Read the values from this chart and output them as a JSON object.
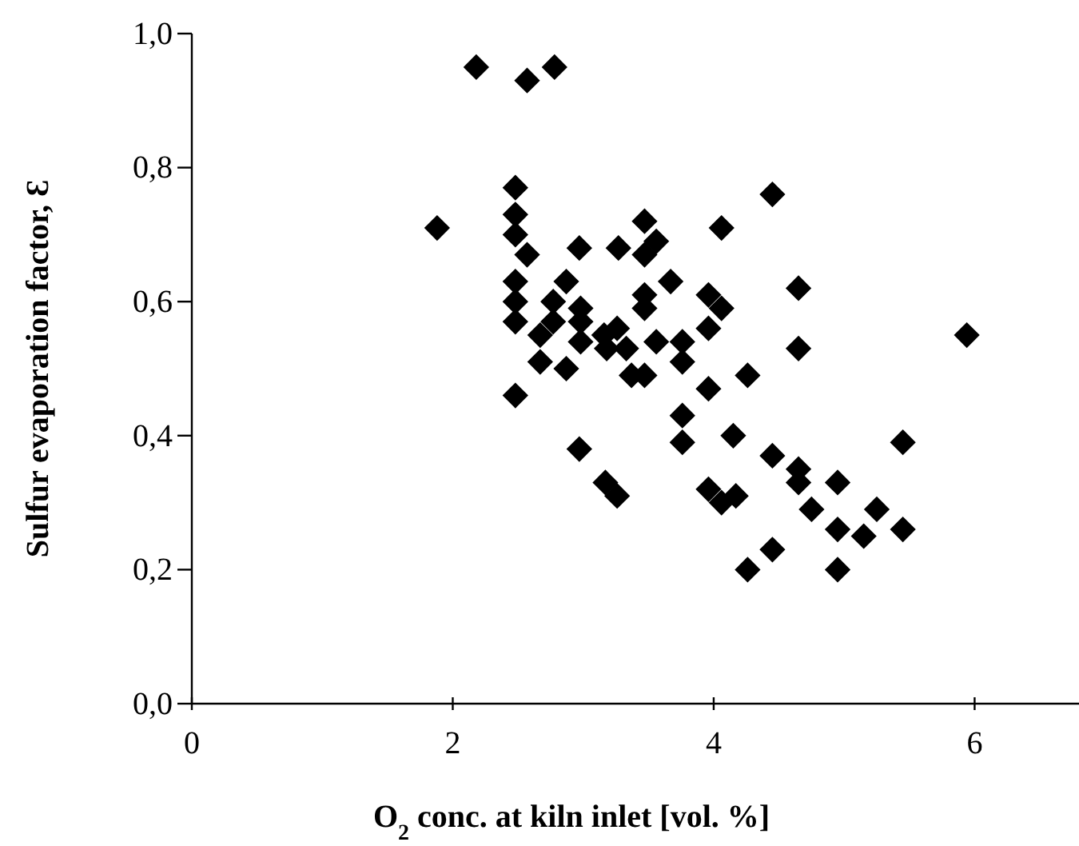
{
  "chart_data": {
    "type": "scatter",
    "xlabel": "O$_{2}$ conc. at kiln inlet [vol. %]",
    "ylabel": "Sulfur evaporation factor, Ɛ",
    "xlim": [
      0,
      6.8
    ],
    "ylim": [
      0,
      1
    ],
    "xticks": [
      0,
      2,
      4,
      6
    ],
    "yticks": [
      {
        "value": 0,
        "label": "0,0"
      },
      {
        "value": 0.2,
        "label": "0,2"
      },
      {
        "value": 0.4,
        "label": "0,4"
      },
      {
        "value": 0.6,
        "label": "0,6"
      },
      {
        "value": 0.8,
        "label": "0,8"
      },
      {
        "value": 1,
        "label": "1,0"
      }
    ],
    "marker": "diamond",
    "grid": false,
    "series": [
      {
        "color": "#000000",
        "x": [
          2.18,
          2.57,
          2.78,
          2.48,
          1.88,
          2.48,
          2.48,
          2.57,
          2.97,
          2.48,
          2.48,
          2.48,
          2.87,
          2.77,
          2.77,
          2.98,
          2.98,
          2.98,
          2.67,
          2.67,
          2.87,
          2.48,
          2.97,
          3.17,
          3.26,
          3.26,
          3.18,
          3.33,
          3.37,
          3.47,
          3.27,
          3.47,
          3.47,
          3.47,
          3.47,
          3.16,
          4.45,
          3.56,
          4.06,
          3.67,
          3.96,
          4.06,
          4.65,
          3.56,
          3.76,
          3.96,
          3.76,
          4.65,
          5.94,
          4.26,
          3.96,
          3.76,
          3.76,
          4.15,
          4.45,
          4.65,
          4.65,
          4.95,
          5.45,
          3.96,
          4.06,
          4.17,
          4.75,
          4.95,
          5.15,
          5.25,
          5.45,
          4.45,
          4.26,
          4.95
        ],
        "values": [
          0.95,
          0.93,
          0.95,
          0.77,
          0.71,
          0.73,
          0.7,
          0.67,
          0.68,
          0.63,
          0.6,
          0.57,
          0.63,
          0.6,
          0.57,
          0.59,
          0.57,
          0.54,
          0.55,
          0.51,
          0.5,
          0.46,
          0.38,
          0.33,
          0.31,
          0.56,
          0.53,
          0.53,
          0.49,
          0.49,
          0.68,
          0.72,
          0.67,
          0.61,
          0.59,
          0.55,
          0.76,
          0.69,
          0.71,
          0.63,
          0.61,
          0.59,
          0.62,
          0.54,
          0.54,
          0.56,
          0.51,
          0.53,
          0.55,
          0.49,
          0.47,
          0.43,
          0.39,
          0.4,
          0.37,
          0.35,
          0.33,
          0.33,
          0.39,
          0.32,
          0.3,
          0.31,
          0.29,
          0.26,
          0.25,
          0.29,
          0.26,
          0.23,
          0.2,
          0.2
        ]
      }
    ]
  }
}
